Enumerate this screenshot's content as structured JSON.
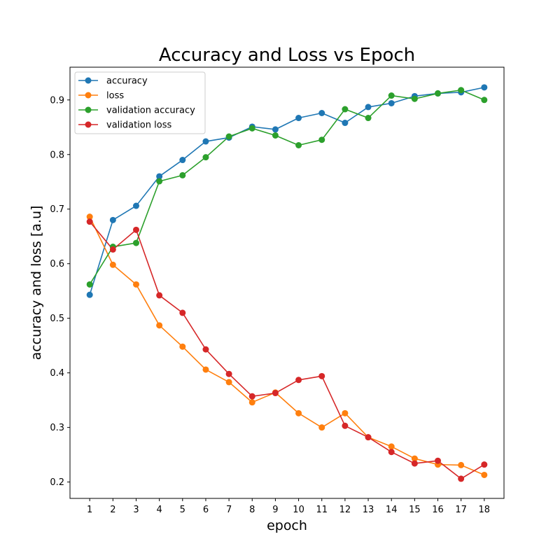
{
  "chart_data": {
    "type": "line",
    "title": "Accuracy and Loss vs Epoch",
    "xlabel": "epoch",
    "ylabel": "accuracy and loss [a.u]",
    "x": [
      1,
      2,
      3,
      4,
      5,
      6,
      7,
      8,
      9,
      10,
      11,
      12,
      13,
      14,
      15,
      16,
      17,
      18
    ],
    "xlim": [
      0.15,
      18.85
    ],
    "ylim": [
      0.17,
      0.96
    ],
    "yticks": [
      0.2,
      0.3,
      0.4,
      0.5,
      0.6,
      0.7,
      0.8,
      0.9
    ],
    "ytick_labels": [
      "0.2",
      "0.3",
      "0.4",
      "0.5",
      "0.6",
      "0.7",
      "0.8",
      "0.9"
    ],
    "xtick_labels": [
      "1",
      "2",
      "3",
      "4",
      "5",
      "6",
      "7",
      "8",
      "9",
      "10",
      "11",
      "12",
      "13",
      "14",
      "15",
      "16",
      "17",
      "18"
    ],
    "grid": false,
    "legend_position": "top-left",
    "series": [
      {
        "name": "accuracy",
        "color": "#1f77b4",
        "values": [
          0.543,
          0.68,
          0.706,
          0.76,
          0.79,
          0.824,
          0.831,
          0.851,
          0.846,
          0.867,
          0.876,
          0.858,
          0.887,
          0.894,
          0.907,
          0.912,
          0.914,
          0.923
        ]
      },
      {
        "name": "loss",
        "color": "#ff7f0e",
        "values": [
          0.686,
          0.598,
          0.562,
          0.487,
          0.448,
          0.406,
          0.383,
          0.346,
          0.364,
          0.326,
          0.3,
          0.326,
          0.282,
          0.265,
          0.243,
          0.232,
          0.231,
          0.213
        ]
      },
      {
        "name": "validation accuracy",
        "color": "#2ca02c",
        "values": [
          0.562,
          0.631,
          0.638,
          0.751,
          0.762,
          0.795,
          0.833,
          0.848,
          0.835,
          0.817,
          0.827,
          0.883,
          0.867,
          0.908,
          0.902,
          0.912,
          0.918,
          0.9
        ]
      },
      {
        "name": "validation loss",
        "color": "#d62728",
        "values": [
          0.677,
          0.626,
          0.662,
          0.542,
          0.51,
          0.443,
          0.398,
          0.357,
          0.363,
          0.387,
          0.394,
          0.303,
          0.282,
          0.255,
          0.234,
          0.239,
          0.206,
          0.232
        ]
      }
    ]
  }
}
